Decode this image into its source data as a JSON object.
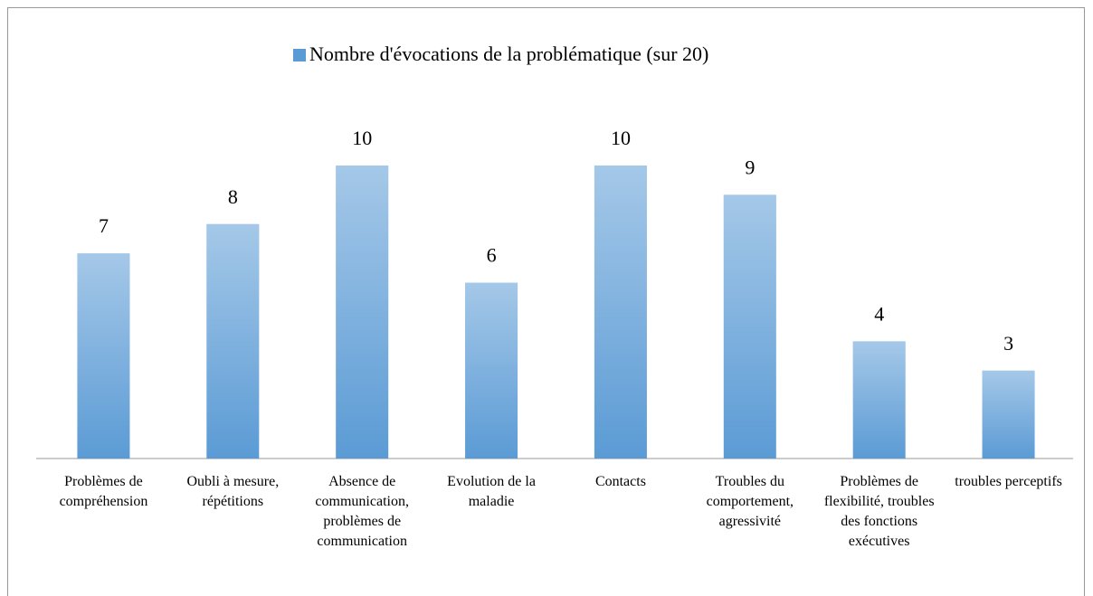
{
  "chart_data": {
    "type": "bar",
    "legend_label": "Nombre d'évocations de la problématique (sur 20)",
    "categories": [
      "Problèmes de compréhension",
      "Oubli à mesure, répétitions",
      "Absence de communication, problèmes de communication",
      "Evolution de la maladie",
      "Contacts",
      "Troubles du comportement, agressivité",
      "Problèmes de flexibilité, troubles des fonctions exécutives",
      "troubles perceptifs"
    ],
    "values": [
      7,
      8,
      10,
      6,
      10,
      9,
      4,
      3
    ],
    "color": "#5b9bd5",
    "ylim": [
      0,
      10
    ]
  }
}
